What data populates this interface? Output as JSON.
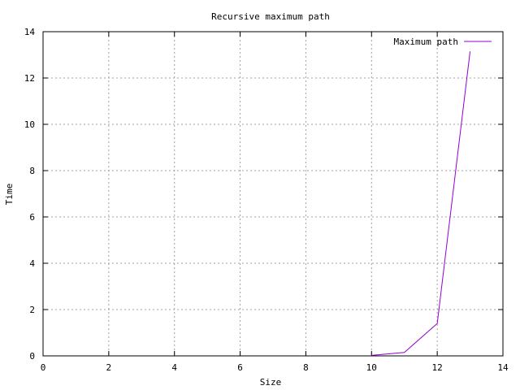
{
  "chart_data": {
    "type": "line",
    "title": "Recursive maximum path",
    "xlabel": "Size",
    "ylabel": "Time",
    "xlim": [
      0,
      14
    ],
    "ylim": [
      0,
      14
    ],
    "xticks": [
      0,
      2,
      4,
      6,
      8,
      10,
      12,
      14
    ],
    "yticks": [
      0,
      2,
      4,
      6,
      8,
      10,
      12,
      14
    ],
    "grid": true,
    "legend_position": "top-right",
    "series": [
      {
        "name": "Maximum path",
        "color": "#9400d3",
        "x": [
          10,
          11,
          12,
          13
        ],
        "y": [
          0.02,
          0.15,
          1.4,
          13.15
        ]
      }
    ]
  }
}
